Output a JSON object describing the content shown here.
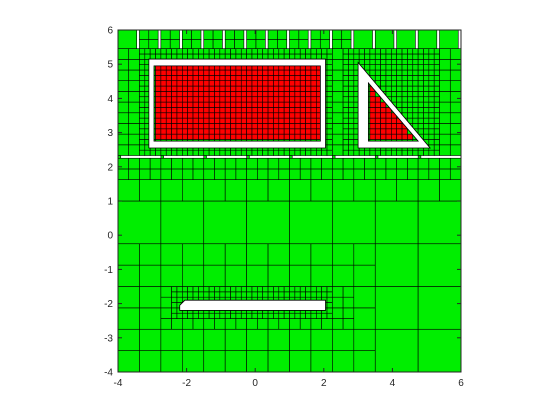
{
  "chart_data": {
    "type": "heatmap",
    "description_of_cells": "quadtree mesh of square cells; each cell colored by class",
    "title": "",
    "xlabel": "",
    "ylabel": "",
    "xlim": [
      -4,
      6
    ],
    "ylim": [
      -4,
      6
    ],
    "xticks": [
      -4,
      -2,
      0,
      2,
      4,
      6
    ],
    "yticks": [
      -4,
      -3,
      -2,
      -1,
      0,
      1,
      2,
      3,
      4,
      5,
      6
    ],
    "grid": false,
    "colors": {
      "outside": "#00ee00",
      "inside": "#ff0000",
      "cell_edge": "#000000",
      "boundary_gap": "#ffffff"
    },
    "coarse_blocks": [
      {
        "x": [
          -4,
          6
        ],
        "y": [
          -4,
          2.33
        ],
        "cell": 1.25,
        "class": "outside"
      },
      {
        "x": [
          -4,
          6
        ],
        "y": [
          2.33,
          6
        ],
        "cell": 0.625,
        "class": "outside"
      }
    ],
    "obstacles": [
      {
        "name": "rectangle",
        "shape": "polygon",
        "outer": [
          [
            -3.1,
            2.55
          ],
          [
            2.05,
            2.55
          ],
          [
            2.05,
            5.15
          ],
          [
            -3.1,
            5.15
          ]
        ],
        "inner": [
          [
            -2.95,
            2.75
          ],
          [
            1.9,
            2.75
          ],
          [
            1.9,
            4.95
          ],
          [
            -2.95,
            4.95
          ]
        ],
        "inside_class": "inside",
        "refinement": 0.15625
      },
      {
        "name": "triangle",
        "shape": "polygon",
        "outer": [
          [
            3.0,
            2.55
          ],
          [
            5.1,
            2.55
          ],
          [
            3.0,
            5.05
          ]
        ],
        "inner": [
          [
            3.3,
            2.75
          ],
          [
            4.75,
            2.75
          ],
          [
            3.3,
            4.45
          ]
        ],
        "inside_class": "inside",
        "refinement": 0.15625
      },
      {
        "name": "bar",
        "shape": "polygon",
        "outer": [
          [
            -2.2,
            -2.2
          ],
          [
            2.05,
            -2.2
          ],
          [
            2.05,
            -1.9
          ],
          [
            -2.05,
            -1.9
          ],
          [
            -2.2,
            -2.05
          ]
        ],
        "inner": [],
        "inside_class": "inside",
        "refinement": 0.15625
      }
    ]
  }
}
